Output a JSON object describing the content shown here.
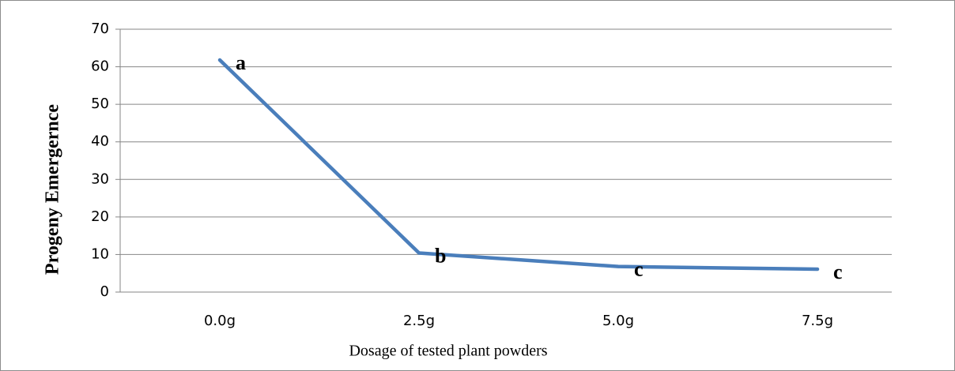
{
  "chart_data": {
    "type": "line",
    "xlabel": "Dosage of tested plant powders",
    "ylabel": "Progeny Emergernce",
    "categories": [
      "0.0g",
      "2.5g",
      "5.0g",
      "7.5g"
    ],
    "values": [
      61.8,
      10.4,
      6.8,
      6.1
    ],
    "annotations": [
      "a",
      "b",
      "c",
      "c"
    ],
    "color": "#4a7ebb",
    "ylim": [
      0,
      70
    ],
    "yticks": [
      0,
      10,
      20,
      30,
      40,
      50,
      60,
      70
    ],
    "grid": true
  }
}
